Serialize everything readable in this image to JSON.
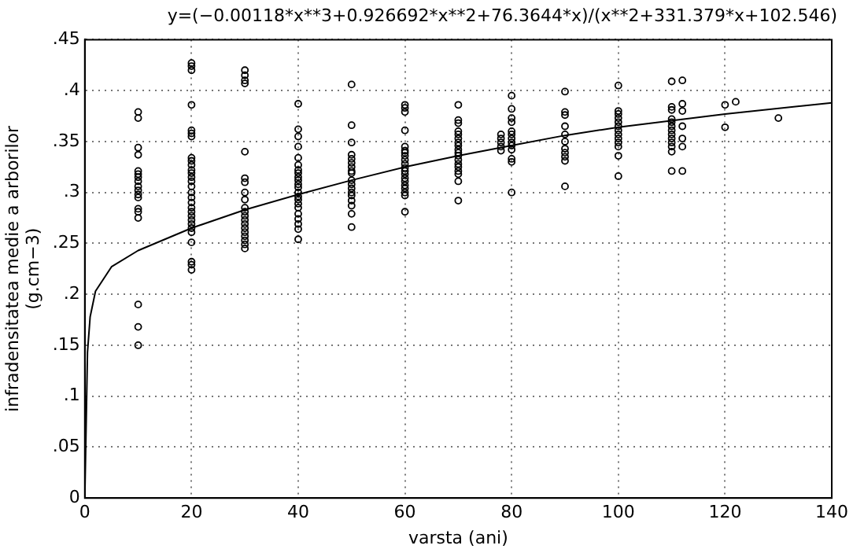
{
  "chart_data": {
    "type": "scatter",
    "title": "y=(−0.00118*x**3+0.926692*x**2+76.3644*x)/(x**2+331.379*x+102.546)",
    "xlabel": "varsta (ani)",
    "ylabel": "infradensitatea medie a arborilor\n(g.cm−3)",
    "xlim": [
      0,
      140
    ],
    "xticks": [
      0,
      20,
      40,
      60,
      80,
      100,
      120,
      140
    ],
    "ylim": [
      0,
      0.45
    ],
    "yticks": [
      {
        "value": 0,
        "label": "0"
      },
      {
        "value": 0.05,
        "label": ".05"
      },
      {
        "value": 0.1,
        "label": ".1"
      },
      {
        "value": 0.15,
        "label": ".15"
      },
      {
        "value": 0.2,
        "label": ".2"
      },
      {
        "value": 0.25,
        "label": ".25"
      },
      {
        "value": 0.3,
        "label": ".3"
      },
      {
        "value": 0.35,
        "label": ".35"
      },
      {
        "value": 0.4,
        "label": ".4"
      },
      {
        "value": 0.45,
        "label": ".45"
      }
    ],
    "grid": true,
    "legend": false,
    "series": [
      {
        "type": "scatter",
        "marker": "circle",
        "color": "#000000",
        "x": [
          10,
          10,
          10,
          10,
          10,
          10,
          10,
          10,
          10,
          10,
          10,
          10,
          10,
          10,
          10,
          10,
          10,
          10,
          20,
          20,
          20,
          20,
          20,
          20,
          20,
          20,
          20,
          20,
          20,
          20,
          20,
          20,
          20,
          20,
          20,
          20,
          20,
          20,
          20,
          20,
          20,
          20,
          20,
          20,
          20,
          20,
          20,
          30,
          30,
          30,
          30,
          30,
          30,
          30,
          30,
          30,
          30,
          30,
          30,
          30,
          30,
          30,
          30,
          30,
          30,
          30,
          30,
          40,
          40,
          40,
          40,
          40,
          40,
          40,
          40,
          40,
          40,
          40,
          40,
          40,
          40,
          40,
          40,
          40,
          40,
          40,
          40,
          40,
          40,
          50,
          50,
          50,
          50,
          50,
          50,
          50,
          50,
          50,
          50,
          50,
          50,
          50,
          50,
          50,
          50,
          50,
          50,
          60,
          60,
          60,
          60,
          60,
          60,
          60,
          60,
          60,
          60,
          60,
          60,
          60,
          60,
          60,
          60,
          60,
          60,
          60,
          60,
          70,
          70,
          70,
          70,
          70,
          70,
          70,
          70,
          70,
          70,
          70,
          70,
          70,
          70,
          70,
          70,
          70,
          70,
          78,
          78,
          78,
          78,
          78,
          80,
          80,
          80,
          80,
          80,
          80,
          80,
          80,
          80,
          80,
          80,
          80,
          80,
          90,
          90,
          90,
          90,
          90,
          90,
          90,
          90,
          90,
          90,
          90,
          100,
          100,
          100,
          100,
          100,
          100,
          100,
          100,
          100,
          100,
          100,
          100,
          100,
          110,
          110,
          110,
          110,
          110,
          110,
          110,
          110,
          110,
          110,
          110,
          110,
          110,
          112,
          112,
          112,
          112,
          112,
          112,
          112,
          120,
          120,
          122,
          130
        ],
        "values": [
          0.379,
          0.373,
          0.344,
          0.337,
          0.321,
          0.318,
          0.315,
          0.311,
          0.306,
          0.302,
          0.298,
          0.295,
          0.284,
          0.281,
          0.275,
          0.19,
          0.168,
          0.15,
          0.427,
          0.424,
          0.42,
          0.386,
          0.361,
          0.358,
          0.355,
          0.334,
          0.331,
          0.327,
          0.322,
          0.319,
          0.315,
          0.311,
          0.306,
          0.3,
          0.295,
          0.29,
          0.285,
          0.281,
          0.277,
          0.273,
          0.269,
          0.265,
          0.261,
          0.251,
          0.232,
          0.229,
          0.224,
          0.42,
          0.415,
          0.41,
          0.407,
          0.34,
          0.314,
          0.31,
          0.3,
          0.293,
          0.285,
          0.281,
          0.277,
          0.273,
          0.269,
          0.265,
          0.261,
          0.257,
          0.253,
          0.249,
          0.245,
          0.387,
          0.362,
          0.355,
          0.345,
          0.334,
          0.327,
          0.322,
          0.319,
          0.315,
          0.312,
          0.308,
          0.305,
          0.3,
          0.296,
          0.293,
          0.289,
          0.285,
          0.279,
          0.274,
          0.269,
          0.264,
          0.254,
          0.406,
          0.366,
          0.349,
          0.337,
          0.333,
          0.329,
          0.325,
          0.321,
          0.319,
          0.312,
          0.308,
          0.304,
          0.3,
          0.297,
          0.292,
          0.287,
          0.279,
          0.266,
          0.386,
          0.383,
          0.379,
          0.361,
          0.345,
          0.341,
          0.339,
          0.336,
          0.332,
          0.328,
          0.324,
          0.321,
          0.318,
          0.314,
          0.311,
          0.307,
          0.304,
          0.3,
          0.297,
          0.281,
          0.386,
          0.371,
          0.368,
          0.36,
          0.357,
          0.353,
          0.349,
          0.346,
          0.342,
          0.339,
          0.336,
          0.332,
          0.328,
          0.325,
          0.321,
          0.318,
          0.311,
          0.292,
          0.357,
          0.353,
          0.349,
          0.345,
          0.341,
          0.395,
          0.382,
          0.373,
          0.369,
          0.36,
          0.357,
          0.353,
          0.349,
          0.346,
          0.342,
          0.333,
          0.33,
          0.3,
          0.399,
          0.379,
          0.376,
          0.365,
          0.357,
          0.35,
          0.343,
          0.339,
          0.335,
          0.331,
          0.306,
          0.405,
          0.38,
          0.377,
          0.373,
          0.369,
          0.365,
          0.361,
          0.357,
          0.353,
          0.349,
          0.345,
          0.336,
          0.316,
          0.409,
          0.384,
          0.381,
          0.372,
          0.369,
          0.365,
          0.361,
          0.357,
          0.353,
          0.349,
          0.345,
          0.34,
          0.321,
          0.41,
          0.387,
          0.38,
          0.365,
          0.353,
          0.345,
          0.321,
          0.386,
          0.364,
          0.389,
          0.373
        ]
      },
      {
        "type": "line",
        "marker": "none",
        "line_style": "solid",
        "color": "#000000",
        "x": [
          0,
          0.5,
          1,
          2,
          5,
          10,
          20,
          30,
          40,
          50,
          60,
          70,
          80,
          90,
          100,
          120,
          140
        ],
        "values": [
          0,
          0.143,
          0.178,
          0.203,
          0.227,
          0.243,
          0.265,
          0.283,
          0.298,
          0.312,
          0.325,
          0.336,
          0.346,
          0.356,
          0.364,
          0.377,
          0.388
        ]
      }
    ]
  }
}
